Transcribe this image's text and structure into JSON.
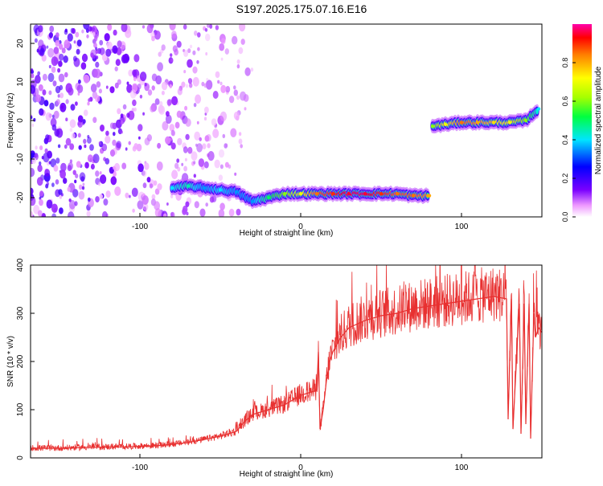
{
  "title": "S197.2025.175.07.16.E16",
  "chart_data": [
    {
      "type": "heatmap",
      "xlabel": "Height of straight line (km)",
      "ylabel": "Frequency (Hz)",
      "xlim": [
        -168,
        150
      ],
      "ylim": [
        -25,
        25
      ],
      "xticks": [
        -100,
        0,
        100
      ],
      "yticks": [
        -20,
        -10,
        0,
        10,
        20
      ],
      "colorbar": {
        "label": "Normalized spectral amplitude",
        "range": [
          0,
          1
        ],
        "ticks": [
          "0.0",
          "0.2",
          "0.4",
          "0.6",
          "0.8"
        ]
      },
      "noise_region": {
        "x_from": -168,
        "x_to": -30,
        "y_from": -25,
        "y_to": 25
      },
      "ridge": [
        {
          "x": -80,
          "y": -17.5,
          "v": 0.4
        },
        {
          "x": -70,
          "y": -17.0,
          "v": 0.45
        },
        {
          "x": -60,
          "y": -17.5,
          "v": 0.35
        },
        {
          "x": -50,
          "y": -18.0,
          "v": 0.4
        },
        {
          "x": -40,
          "y": -18.5,
          "v": 0.35
        },
        {
          "x": -30,
          "y": -21.0,
          "v": 0.35
        },
        {
          "x": -20,
          "y": -20.0,
          "v": 0.5
        },
        {
          "x": -10,
          "y": -19.0,
          "v": 0.6
        },
        {
          "x": 0,
          "y": -19.0,
          "v": 0.7
        },
        {
          "x": 10,
          "y": -19.0,
          "v": 0.85
        },
        {
          "x": 20,
          "y": -19.0,
          "v": 0.9
        },
        {
          "x": 30,
          "y": -19.0,
          "v": 0.95
        },
        {
          "x": 40,
          "y": -19.0,
          "v": 0.95
        },
        {
          "x": 50,
          "y": -19.0,
          "v": 0.9
        },
        {
          "x": 60,
          "y": -19.0,
          "v": 0.85
        },
        {
          "x": 70,
          "y": -19.5,
          "v": 0.85
        },
        {
          "x": 80,
          "y": -19.5,
          "v": 0.8
        },
        {
          "x": 82,
          "y": -1.5,
          "v": 0.6
        },
        {
          "x": 90,
          "y": -1.0,
          "v": 0.7
        },
        {
          "x": 100,
          "y": -0.5,
          "v": 0.85
        },
        {
          "x": 110,
          "y": -0.5,
          "v": 0.8
        },
        {
          "x": 120,
          "y": -0.5,
          "v": 0.75
        },
        {
          "x": 130,
          "y": -0.5,
          "v": 0.7
        },
        {
          "x": 140,
          "y": 0.0,
          "v": 0.6
        },
        {
          "x": 148,
          "y": 3.0,
          "v": 0.4
        }
      ]
    },
    {
      "type": "line",
      "xlabel": "Height of straight line (km)",
      "ylabel": "SNR (10 * v/v)",
      "xlim": [
        -168,
        150
      ],
      "ylim": [
        0,
        400
      ],
      "xticks": [
        -100,
        0,
        100
      ],
      "yticks": [
        0,
        100,
        200,
        300,
        400
      ],
      "color": "#e83030",
      "series": [
        {
          "x": [
            -168,
            -150,
            -130,
            -110,
            -90,
            -80,
            -70,
            -60,
            -50,
            -40,
            -35,
            -30,
            -25,
            -20,
            -15,
            -10,
            -5,
            0,
            5,
            10,
            11,
            12,
            14,
            16,
            18,
            20,
            25,
            30,
            40,
            50,
            60,
            70,
            80,
            90,
            100,
            110,
            120,
            128,
            129,
            131,
            132,
            136,
            137,
            139,
            140,
            142,
            143,
            145,
            146,
            148,
            150
          ],
          "y": [
            20,
            20,
            22,
            23,
            25,
            28,
            32,
            38,
            45,
            55,
            75,
            90,
            95,
            100,
            105,
            110,
            120,
            130,
            135,
            140,
            220,
            60,
            100,
            160,
            200,
            220,
            250,
            270,
            285,
            295,
            300,
            310,
            315,
            320,
            325,
            330,
            335,
            330,
            80,
            330,
            60,
            320,
            50,
            320,
            70,
            320,
            40,
            300,
            250,
            270,
            260
          ]
        }
      ]
    }
  ]
}
